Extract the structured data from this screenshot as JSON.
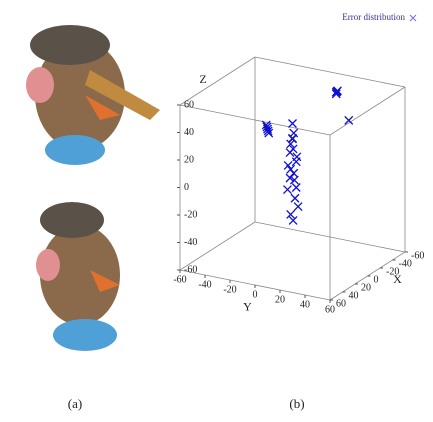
{
  "panels": {
    "a": "(a)",
    "b": "(b)"
  },
  "chart_data": {
    "type": "scatter3d",
    "xlabel": "X",
    "ylabel": "Y",
    "zlabel": "Z",
    "xlim": [
      -60,
      60
    ],
    "ylim": [
      -60,
      60
    ],
    "zlim": [
      -60,
      60
    ],
    "xticks": [
      -60,
      -40,
      -20,
      0,
      20,
      40,
      60
    ],
    "yticks": [
      -60,
      -40,
      -20,
      0,
      20,
      40,
      60
    ],
    "zticks": [
      -60,
      -40,
      -20,
      0,
      20,
      40,
      60
    ],
    "legend": "upper right",
    "series": [
      {
        "name": "Error distribution",
        "color": "#1010d0",
        "x": [
          0,
          2,
          -2,
          1,
          -1,
          3,
          0,
          -3,
          2,
          0,
          -1,
          1,
          4,
          -2,
          0,
          1,
          -50,
          -48,
          -52,
          -49,
          20,
          22,
          18,
          21,
          19,
          -30,
          2,
          -1,
          0,
          3
        ],
        "y": [
          0,
          2,
          -1,
          1,
          3,
          -2,
          1,
          0,
          -3,
          2,
          4,
          -1,
          0,
          2,
          -2,
          1,
          10,
          12,
          9,
          11,
          -10,
          -8,
          -12,
          -9,
          -11,
          30,
          1,
          -2,
          3,
          0
        ],
        "z": [
          40,
          34,
          28,
          22,
          16,
          10,
          4,
          -2,
          -8,
          -14,
          -20,
          -26,
          20,
          12,
          0,
          -30,
          50,
          52,
          48,
          51,
          40,
          38,
          42,
          39,
          41,
          39,
          30,
          6,
          -6,
          26
        ]
      }
    ]
  }
}
